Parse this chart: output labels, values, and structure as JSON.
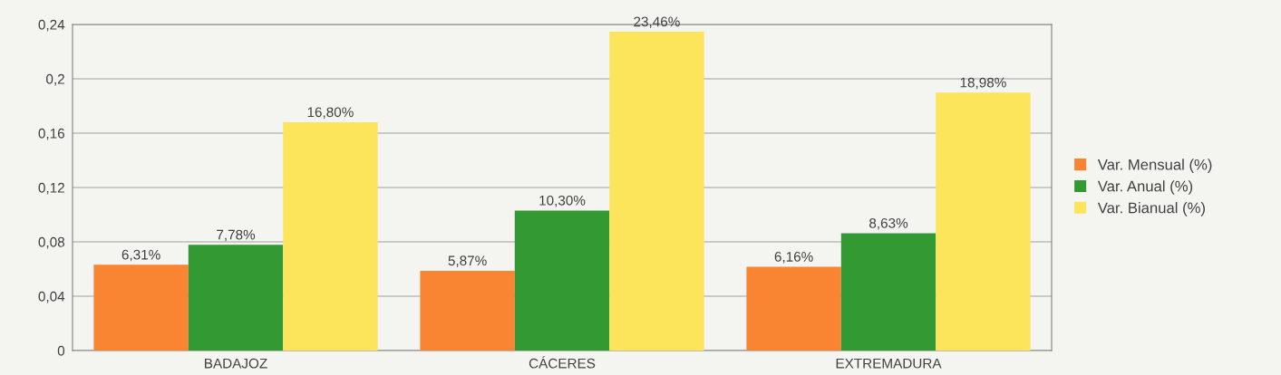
{
  "chart_data": {
    "type": "bar",
    "categories": [
      "BADAJOZ",
      "CÁCERES",
      "EXTREMADURA"
    ],
    "series": [
      {
        "name": "Var. Mensual (%)",
        "color": "#f98431",
        "values": [
          0.0631,
          0.0587,
          0.0616
        ],
        "value_labels": [
          "6,31%",
          "5,87%",
          "6,16%"
        ]
      },
      {
        "name": "Var. Anual (%)",
        "color": "#339933",
        "values": [
          0.0778,
          0.103,
          0.0863
        ],
        "value_labels": [
          "7,78%",
          "10,30%",
          "8,63%"
        ]
      },
      {
        "name": "Var. Bianual (%)",
        "color": "#fce55a",
        "values": [
          0.168,
          0.2346,
          0.1898
        ],
        "value_labels": [
          "16,80%",
          "23,46%",
          "18,98%"
        ]
      }
    ],
    "ylim": [
      0,
      0.24
    ],
    "yticks": [
      {
        "value": 0,
        "label": "0"
      },
      {
        "value": 0.04,
        "label": "0,04"
      },
      {
        "value": 0.08,
        "label": "0,08"
      },
      {
        "value": 0.12,
        "label": "0,12"
      },
      {
        "value": 0.16,
        "label": "0,16"
      },
      {
        "value": 0.2,
        "label": "0,2"
      },
      {
        "value": 0.24,
        "label": "0,24"
      }
    ],
    "grid": "y",
    "legend": "right"
  }
}
